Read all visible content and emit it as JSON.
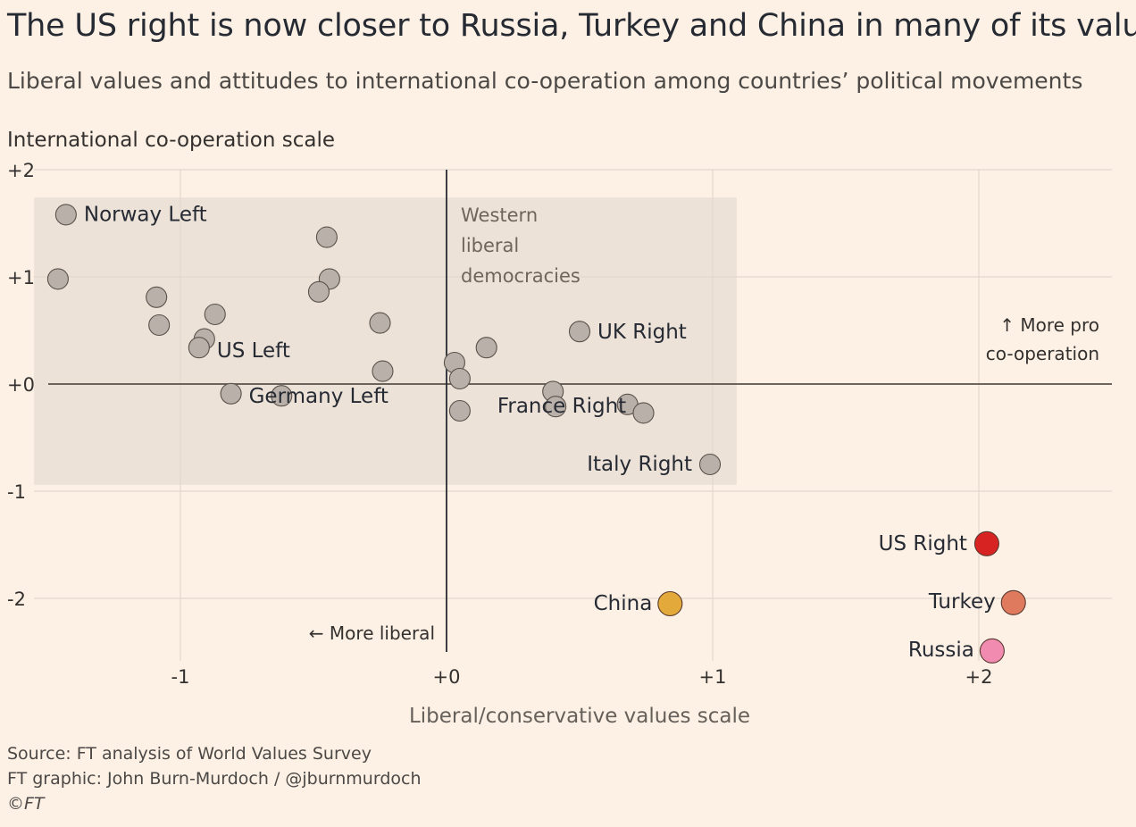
{
  "title": "The US right is now closer to Russia, Turkey and China in many of its values",
  "subtitle": "Liberal values and attitudes to international co-operation among countries’ political movements",
  "footer": {
    "source": "Source: FT analysis of World Values Survey",
    "graphic": "FT graphic: John Burn-Murdoch / @jburnmurdoch",
    "copyright": "©FT"
  },
  "colors": {
    "background": "#fdf1e5",
    "region": "#ece2d8",
    "default_point": "#b8b0a9",
    "us_right": "#d82323",
    "turkey": "#e07a5f",
    "russia": "#f28bb0",
    "china": "#e3a93b"
  },
  "chart_data": {
    "type": "scatter",
    "xlabel": "Liberal/conservative values scale",
    "ylabel": "International co-operation scale",
    "xlim": [
      -1.65,
      2.5
    ],
    "ylim": [
      -2.55,
      2
    ],
    "x_ticks": [
      {
        "value": -1,
        "label": "-1"
      },
      {
        "value": 0,
        "label": "+0"
      },
      {
        "value": 1,
        "label": "+1"
      },
      {
        "value": 2,
        "label": "+2"
      }
    ],
    "y_ticks": [
      {
        "value": 2,
        "label": "+2"
      },
      {
        "value": 1,
        "label": "+1"
      },
      {
        "value": 0,
        "label": "+0"
      },
      {
        "value": -1,
        "label": "-1"
      },
      {
        "value": -2,
        "label": "-2"
      }
    ],
    "grid": true,
    "region": {
      "label_lines": [
        "Western",
        "liberal",
        "democracies"
      ],
      "x_range": [
        -1.55,
        1.09
      ],
      "y_range": [
        -0.94,
        1.74
      ]
    },
    "annotations": {
      "left_arrow": "← More liberal",
      "up_arrow_lines": [
        "↑ More pro",
        "co-operation"
      ]
    },
    "points": [
      {
        "label": "Norway Left",
        "x": -1.43,
        "y": 1.58,
        "color_key": "default_point"
      },
      {
        "label": "",
        "x": -1.46,
        "y": 0.98,
        "color_key": "default_point"
      },
      {
        "label": "",
        "x": -1.09,
        "y": 0.81,
        "color_key": "default_point"
      },
      {
        "label": "",
        "x": -1.08,
        "y": 0.55,
        "color_key": "default_point"
      },
      {
        "label": "",
        "x": -0.87,
        "y": 0.65,
        "color_key": "default_point"
      },
      {
        "label": "",
        "x": -0.91,
        "y": 0.42,
        "color_key": "default_point"
      },
      {
        "label": "US Left",
        "x": -0.93,
        "y": 0.34,
        "color_key": "default_point"
      },
      {
        "label": "Germany Left",
        "x": -0.81,
        "y": -0.09,
        "color_key": "default_point"
      },
      {
        "label": "",
        "x": -0.62,
        "y": -0.11,
        "color_key": "default_point"
      },
      {
        "label": "",
        "x": -0.45,
        "y": 1.37,
        "color_key": "default_point"
      },
      {
        "label": "",
        "x": -0.44,
        "y": 0.98,
        "color_key": "default_point"
      },
      {
        "label": "",
        "x": -0.48,
        "y": 0.86,
        "color_key": "default_point"
      },
      {
        "label": "",
        "x": -0.25,
        "y": 0.57,
        "color_key": "default_point"
      },
      {
        "label": "",
        "x": -0.24,
        "y": 0.12,
        "color_key": "default_point"
      },
      {
        "label": "",
        "x": 0.03,
        "y": 0.2,
        "color_key": "default_point"
      },
      {
        "label": "",
        "x": 0.05,
        "y": 0.05,
        "color_key": "default_point"
      },
      {
        "label": "",
        "x": 0.05,
        "y": -0.25,
        "color_key": "default_point"
      },
      {
        "label": "",
        "x": 0.15,
        "y": 0.34,
        "color_key": "default_point"
      },
      {
        "label": "",
        "x": 0.4,
        "y": -0.07,
        "color_key": "default_point"
      },
      {
        "label": "France Right",
        "x": 0.41,
        "y": -0.21,
        "color_key": "default_point"
      },
      {
        "label": "",
        "x": 0.68,
        "y": -0.19,
        "color_key": "default_point"
      },
      {
        "label": "",
        "x": 0.74,
        "y": -0.27,
        "color_key": "default_point"
      },
      {
        "label": "UK Right",
        "x": 0.5,
        "y": 0.49,
        "color_key": "default_point"
      },
      {
        "label": "Italy Right",
        "x": 0.99,
        "y": -0.75,
        "color_key": "default_point"
      },
      {
        "label": "US Right",
        "x": 2.03,
        "y": -1.49,
        "color_key": "us_right"
      },
      {
        "label": "China",
        "x": 0.84,
        "y": -2.05,
        "color_key": "china"
      },
      {
        "label": "Turkey",
        "x": 2.13,
        "y": -2.04,
        "color_key": "turkey"
      },
      {
        "label": "Russia",
        "x": 2.05,
        "y": -2.49,
        "color_key": "russia"
      }
    ]
  }
}
